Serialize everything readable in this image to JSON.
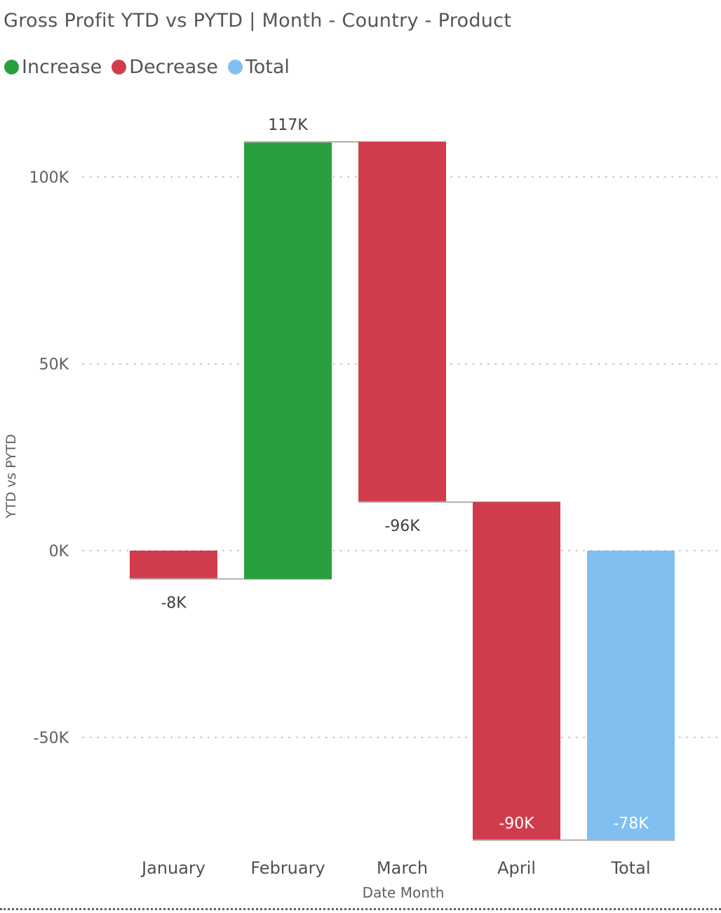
{
  "title": "Gross Profit YTD vs PYTD | Month - Country - Product",
  "legend": [
    {
      "label": "Increase",
      "color": "#28a040"
    },
    {
      "label": "Decrease",
      "color": "#d03c4c"
    },
    {
      "label": "Total",
      "color": "#80bff0"
    }
  ],
  "chart_data": {
    "type": "bar",
    "subtype": "waterfall",
    "title": "Gross Profit YTD vs PYTD | Month - Country - Product",
    "xlabel": "Date Month",
    "ylabel": "YTD vs PYTD",
    "ylim": [
      -75000,
      117000
    ],
    "yticks": [
      100000,
      50000,
      0,
      -50000
    ],
    "ytick_labels": [
      "100K",
      "50K",
      "0K",
      "-50K"
    ],
    "grid": true,
    "legend_position": "top-left",
    "categories": [
      "January",
      "February",
      "March",
      "April",
      "Total"
    ],
    "steps": [
      {
        "category": "January",
        "kind": "Decrease",
        "start": 0,
        "end": -7600,
        "label": "-8K"
      },
      {
        "category": "February",
        "kind": "Increase",
        "start": -7600,
        "end": 109400,
        "label": "117K"
      },
      {
        "category": "March",
        "kind": "Decrease",
        "start": 109400,
        "end": 13000,
        "label": "-96K"
      },
      {
        "category": "April",
        "kind": "Decrease",
        "start": 13000,
        "end": -77500,
        "label": "-90K"
      },
      {
        "category": "Total",
        "kind": "Total",
        "start": 0,
        "end": -77500,
        "label": "-78K"
      }
    ],
    "colors": {
      "Increase": "#28a040",
      "Decrease": "#d03c4c",
      "Total": "#80bff0"
    }
  }
}
